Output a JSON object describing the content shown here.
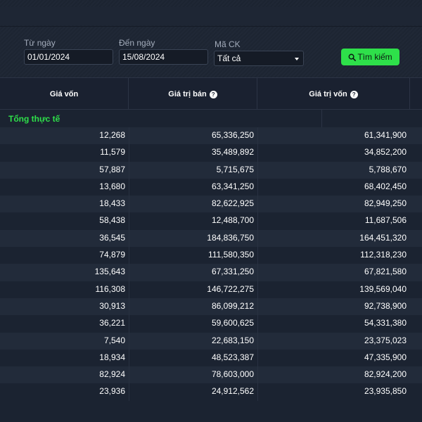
{
  "filters": {
    "from_label": "Từ ngày",
    "from_value": "01/01/2024",
    "to_label": "Đến ngày",
    "to_value": "15/08/2024",
    "code_label": "Mã CK",
    "code_value": "Tất cả",
    "search_label": "Tìm kiếm"
  },
  "table": {
    "headers": [
      "Giá vốn",
      "Giá trị bán",
      "Giá trị vốn"
    ],
    "total_label": "Tổng thực tế",
    "rows": [
      [
        "12,268",
        "65,336,250",
        "61,341,900"
      ],
      [
        "11,579",
        "35,489,892",
        "34,852,200"
      ],
      [
        "57,887",
        "5,715,675",
        "5,788,670"
      ],
      [
        "13,680",
        "63,341,250",
        "68,402,450"
      ],
      [
        "18,433",
        "82,622,925",
        "82,949,250"
      ],
      [
        "58,438",
        "12,488,700",
        "11,687,506"
      ],
      [
        "36,545",
        "184,836,750",
        "164,451,320"
      ],
      [
        "74,879",
        "111,580,350",
        "112,318,230"
      ],
      [
        "135,643",
        "67,331,250",
        "67,821,580"
      ],
      [
        "116,308",
        "146,722,275",
        "139,569,040"
      ],
      [
        "30,913",
        "86,099,212",
        "92,738,900"
      ],
      [
        "36,221",
        "59,600,625",
        "54,331,380"
      ],
      [
        "7,540",
        "22,683,150",
        "23,375,023"
      ],
      [
        "18,934",
        "48,523,387",
        "47,335,900"
      ],
      [
        "82,924",
        "78,603,000",
        "82,924,200"
      ],
      [
        "23,936",
        "24,912,562",
        "23,935,850"
      ]
    ]
  },
  "colors": {
    "accent": "#2ee04a",
    "background": "#1b2331",
    "row_alt": "#222b3a"
  }
}
